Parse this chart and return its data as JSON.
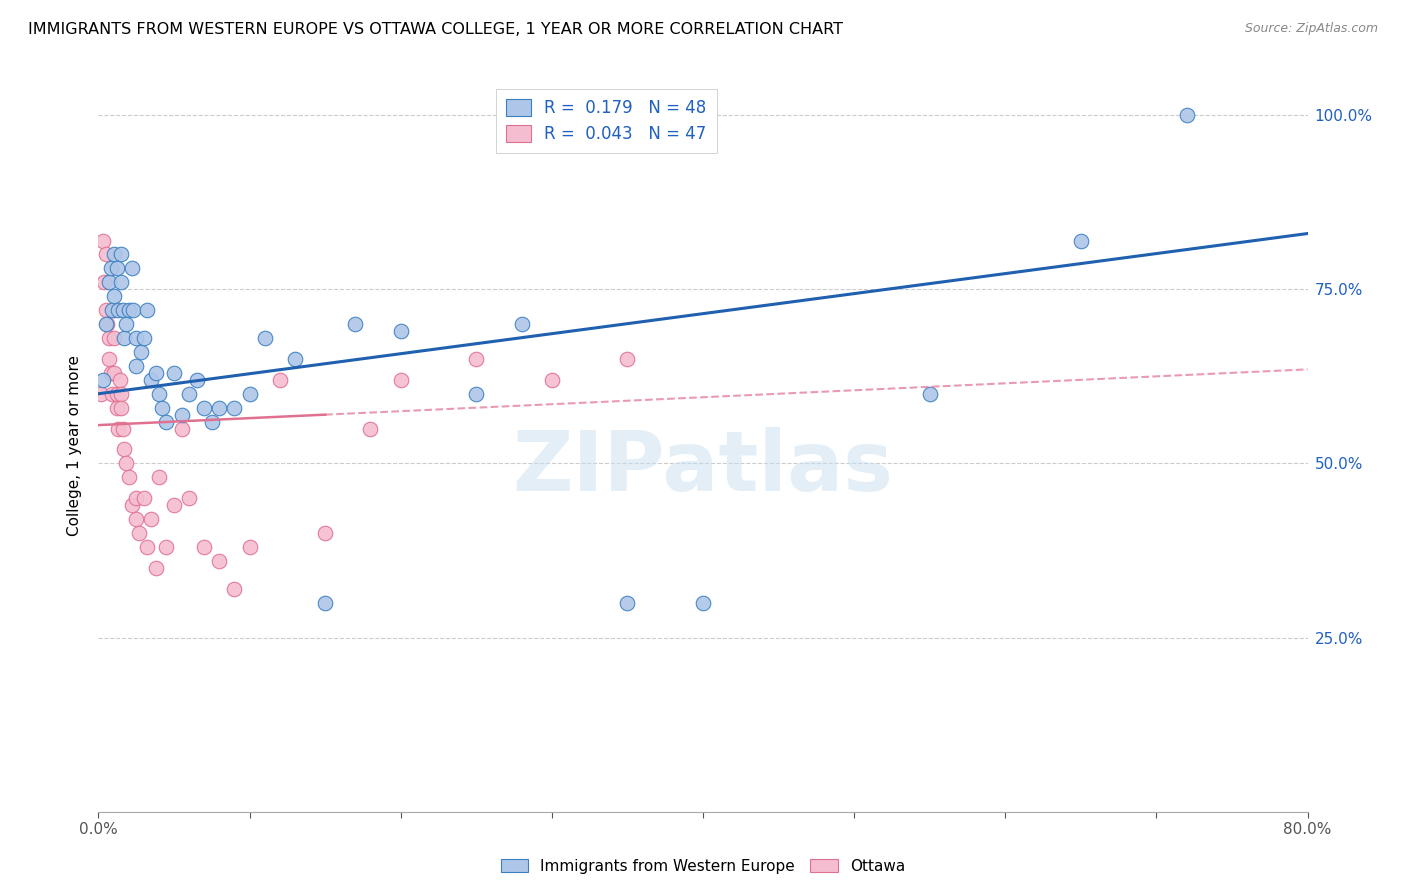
{
  "title": "IMMIGRANTS FROM WESTERN EUROPE VS OTTAWA COLLEGE, 1 YEAR OR MORE CORRELATION CHART",
  "source": "Source: ZipAtlas.com",
  "ylabel": "College, 1 year or more",
  "right_yticks": [
    "100.0%",
    "75.0%",
    "50.0%",
    "25.0%"
  ],
  "right_ytick_vals": [
    1.0,
    0.75,
    0.5,
    0.25
  ],
  "legend_blue_label": "Immigrants from Western Europe",
  "legend_pink_label": "Ottawa",
  "blue_R": 0.179,
  "blue_N": 48,
  "pink_R": 0.043,
  "pink_N": 47,
  "blue_color": "#aec6e8",
  "blue_edge_color": "#3a7fc1",
  "pink_color": "#f5bdd0",
  "pink_edge_color": "#e07090",
  "pink_line_color": "#e07090",
  "blue_line_color": "#2060b0",
  "watermark": "ZIPatlas",
  "xlim": [
    0.0,
    0.8
  ],
  "ylim": [
    0.0,
    1.05
  ],
  "blue_scatter_x": [
    0.003,
    0.005,
    0.007,
    0.008,
    0.009,
    0.01,
    0.01,
    0.012,
    0.013,
    0.015,
    0.015,
    0.016,
    0.017,
    0.018,
    0.02,
    0.022,
    0.023,
    0.025,
    0.025,
    0.028,
    0.03,
    0.032,
    0.035,
    0.038,
    0.04,
    0.042,
    0.045,
    0.05,
    0.055,
    0.06,
    0.065,
    0.07,
    0.075,
    0.08,
    0.09,
    0.1,
    0.11,
    0.13,
    0.15,
    0.17,
    0.2,
    0.25,
    0.28,
    0.35,
    0.4,
    0.55,
    0.65,
    0.72
  ],
  "blue_scatter_y": [
    0.62,
    0.7,
    0.76,
    0.78,
    0.72,
    0.8,
    0.74,
    0.78,
    0.72,
    0.8,
    0.76,
    0.72,
    0.68,
    0.7,
    0.72,
    0.78,
    0.72,
    0.68,
    0.64,
    0.66,
    0.68,
    0.72,
    0.62,
    0.63,
    0.6,
    0.58,
    0.56,
    0.63,
    0.57,
    0.6,
    0.62,
    0.58,
    0.56,
    0.58,
    0.58,
    0.6,
    0.68,
    0.65,
    0.3,
    0.7,
    0.69,
    0.6,
    0.7,
    0.3,
    0.3,
    0.6,
    0.82,
    1.0
  ],
  "pink_scatter_x": [
    0.002,
    0.003,
    0.004,
    0.005,
    0.005,
    0.006,
    0.007,
    0.007,
    0.008,
    0.009,
    0.01,
    0.01,
    0.01,
    0.012,
    0.012,
    0.013,
    0.014,
    0.015,
    0.015,
    0.016,
    0.017,
    0.018,
    0.02,
    0.022,
    0.025,
    0.025,
    0.027,
    0.03,
    0.032,
    0.035,
    0.038,
    0.04,
    0.045,
    0.05,
    0.055,
    0.06,
    0.07,
    0.08,
    0.09,
    0.1,
    0.12,
    0.15,
    0.18,
    0.2,
    0.25,
    0.3,
    0.35
  ],
  "pink_scatter_y": [
    0.6,
    0.82,
    0.76,
    0.72,
    0.8,
    0.7,
    0.68,
    0.65,
    0.63,
    0.6,
    0.72,
    0.68,
    0.63,
    0.6,
    0.58,
    0.55,
    0.62,
    0.6,
    0.58,
    0.55,
    0.52,
    0.5,
    0.48,
    0.44,
    0.45,
    0.42,
    0.4,
    0.45,
    0.38,
    0.42,
    0.35,
    0.48,
    0.38,
    0.44,
    0.55,
    0.45,
    0.38,
    0.36,
    0.32,
    0.38,
    0.62,
    0.4,
    0.55,
    0.62,
    0.65,
    0.62,
    0.65
  ],
  "blue_line_x0": 0.0,
  "blue_line_x1": 0.8,
  "blue_line_y0": 0.6,
  "blue_line_y1": 0.83,
  "pink_line_x0": 0.0,
  "pink_line_x1": 0.8,
  "pink_line_y0": 0.555,
  "pink_line_y1": 0.635
}
